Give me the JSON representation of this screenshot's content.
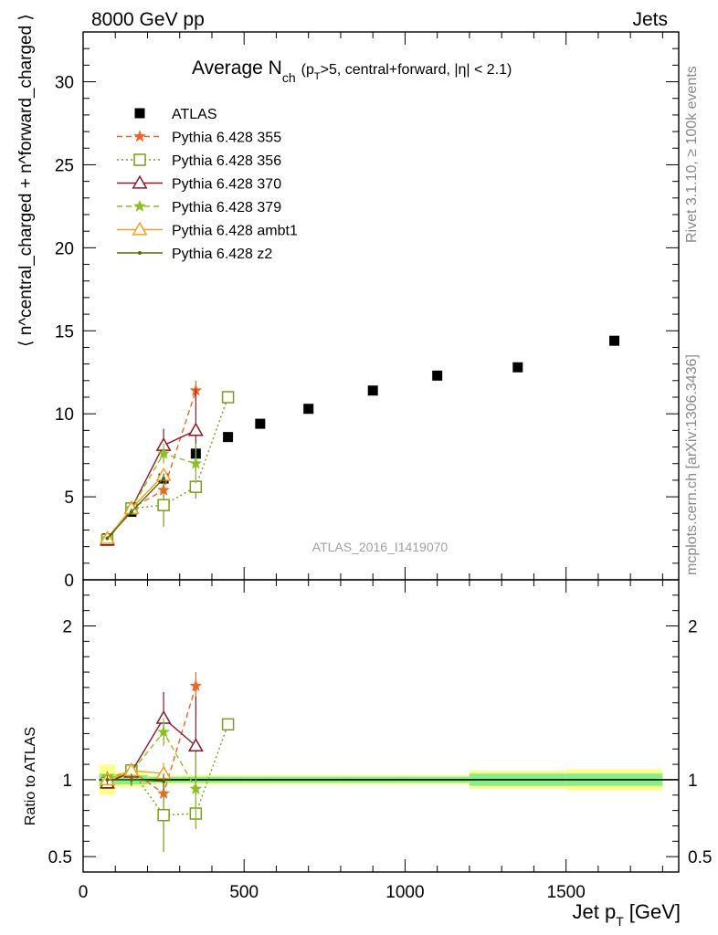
{
  "header": {
    "energy": "8000 GeV pp",
    "process": "Jets",
    "title_main": "Average N",
    "title_sub": "ch",
    "title_cond": "(p",
    "title_cond_sub": "T",
    "title_cond_rest": ">5, central+forward, |η| < 2.1)",
    "side_right_top": "Rivet 3.1.10, ≥ 100k events",
    "side_right_bottom": "mcplots.cern.ch [arXiv:1306.3436]",
    "analysis_id": "ATLAS_2016_I1419070"
  },
  "axes": {
    "ylabel_main": "⟨ n^central_charged + n^forward_charged ⟩",
    "ylabel_ratio": "Ratio to ATLAS",
    "xlabel": "Jet p",
    "xlabel_sub": "T",
    "xlabel_unit": "[GeV]"
  },
  "legend": [
    {
      "label": "ATLAS",
      "color": "#000000",
      "marker": "square-filled",
      "dash": "none"
    },
    {
      "label": "Pythia 6.428 355",
      "color": "#f26522",
      "marker": "star",
      "dash": "dashed"
    },
    {
      "label": "Pythia 6.428 356",
      "color": "#7f9a1c",
      "marker": "square-open",
      "dash": "dotted"
    },
    {
      "label": "Pythia 6.428 370",
      "color": "#8b1a2e",
      "marker": "triangle-open",
      "dash": "solid"
    },
    {
      "label": "Pythia 6.428 379",
      "color": "#8cbf26",
      "marker": "star",
      "dash": "dashed"
    },
    {
      "label": "Pythia 6.428 ambt1",
      "color": "#f0a020",
      "marker": "triangle-open",
      "dash": "solid"
    },
    {
      "label": "Pythia 6.428 z2",
      "color": "#556b00",
      "marker": "dot",
      "dash": "solid"
    }
  ],
  "chart_data": [
    {
      "type": "scatter",
      "panel": "main",
      "xlim": [
        0,
        1850
      ],
      "ylim": [
        0,
        33
      ],
      "xticks": [
        0,
        500,
        1000,
        1500
      ],
      "yticks": [
        0,
        5,
        10,
        15,
        20,
        25,
        30
      ],
      "series": [
        {
          "name": "ATLAS",
          "x": [
            75,
            150,
            250,
            350,
            450,
            550,
            700,
            900,
            1100,
            1350,
            1650
          ],
          "y": [
            2.5,
            4.1,
            6.1,
            7.6,
            8.6,
            9.4,
            10.3,
            11.4,
            12.3,
            12.8,
            14.4
          ]
        },
        {
          "name": "Pythia 6.428 355",
          "x": [
            75,
            150,
            250,
            350
          ],
          "y": [
            2.4,
            4.3,
            5.4,
            11.4
          ],
          "yerr": [
            0.1,
            0.25,
            0.5,
            0.6
          ]
        },
        {
          "name": "Pythia 6.428 356",
          "x": [
            75,
            150,
            250,
            350,
            450
          ],
          "y": [
            2.4,
            4.3,
            4.5,
            5.6,
            11.0
          ],
          "yerr": [
            0.1,
            0.25,
            1.3,
            0.7,
            0.0
          ]
        },
        {
          "name": "Pythia 6.428 370",
          "x": [
            75,
            150,
            250,
            350
          ],
          "y": [
            2.4,
            4.3,
            8.1,
            9.0
          ],
          "yerr": [
            0.1,
            0.2,
            1.0,
            2.5
          ]
        },
        {
          "name": "Pythia 6.428 379",
          "x": [
            75,
            150,
            250,
            350
          ],
          "y": [
            2.5,
            4.3,
            7.6,
            7.0
          ],
          "yerr": [
            0.1,
            0.2,
            0.6,
            1.2
          ]
        },
        {
          "name": "Pythia 6.428 ambt1",
          "x": [
            75,
            150,
            250
          ],
          "y": [
            2.5,
            4.3,
            6.3
          ],
          "yerr": [
            0.1,
            0.2,
            0.4
          ]
        },
        {
          "name": "Pythia 6.428 z2",
          "x": [
            75,
            150,
            250
          ],
          "y": [
            2.5,
            4.1,
            6.1
          ],
          "yerr": [
            0.1,
            0.2,
            0.3
          ]
        }
      ]
    },
    {
      "type": "scatter",
      "panel": "ratio",
      "xlim": [
        0,
        1850
      ],
      "ylim": [
        0.4,
        2.3
      ],
      "yticks": [
        0.5,
        1,
        2
      ],
      "ytick_labels": [
        "0.5",
        "1",
        "2"
      ],
      "reference_band": {
        "x_edges": [
          50,
          100,
          200,
          300,
          400,
          500,
          600,
          800,
          1000,
          1200,
          1500,
          1800
        ],
        "inner_halfwidth": [
          0.04,
          0.03,
          0.02,
          0.02,
          0.02,
          0.02,
          0.02,
          0.02,
          0.02,
          0.04,
          0.04
        ],
        "outer_halfwidth": [
          0.1,
          0.05,
          0.03,
          0.03,
          0.03,
          0.03,
          0.03,
          0.03,
          0.03,
          0.06,
          0.07
        ]
      },
      "series": [
        {
          "name": "Pythia 6.428 355",
          "x": [
            75,
            150,
            250,
            350
          ],
          "y": [
            0.98,
            1.06,
            0.91,
            1.61
          ],
          "yerr": [
            0.03,
            0.05,
            0.06,
            0.09
          ]
        },
        {
          "name": "Pythia 6.428 356",
          "x": [
            75,
            150,
            250,
            350,
            450
          ],
          "y": [
            0.98,
            1.06,
            0.77,
            0.78,
            1.36
          ],
          "yerr": [
            0.03,
            0.05,
            0.24,
            0.1,
            0.0
          ]
        },
        {
          "name": "Pythia 6.428 370",
          "x": [
            75,
            150,
            250,
            350
          ],
          "y": [
            0.98,
            1.05,
            1.4,
            1.22
          ],
          "yerr": [
            0.03,
            0.05,
            0.17,
            0.32
          ]
        },
        {
          "name": "Pythia 6.428 379",
          "x": [
            75,
            150,
            250,
            350
          ],
          "y": [
            1.02,
            1.05,
            1.31,
            0.94
          ],
          "yerr": [
            0.03,
            0.05,
            0.09,
            0.24
          ]
        },
        {
          "name": "Pythia 6.428 ambt1",
          "x": [
            75,
            150,
            250
          ],
          "y": [
            1.0,
            1.06,
            1.04
          ],
          "yerr": [
            0.03,
            0.05,
            0.07
          ]
        },
        {
          "name": "Pythia 6.428 z2",
          "x": [
            75,
            150,
            250
          ],
          "y": [
            1.0,
            1.0,
            0.99
          ],
          "yerr": [
            0.03,
            0.04,
            0.05
          ]
        }
      ]
    }
  ]
}
